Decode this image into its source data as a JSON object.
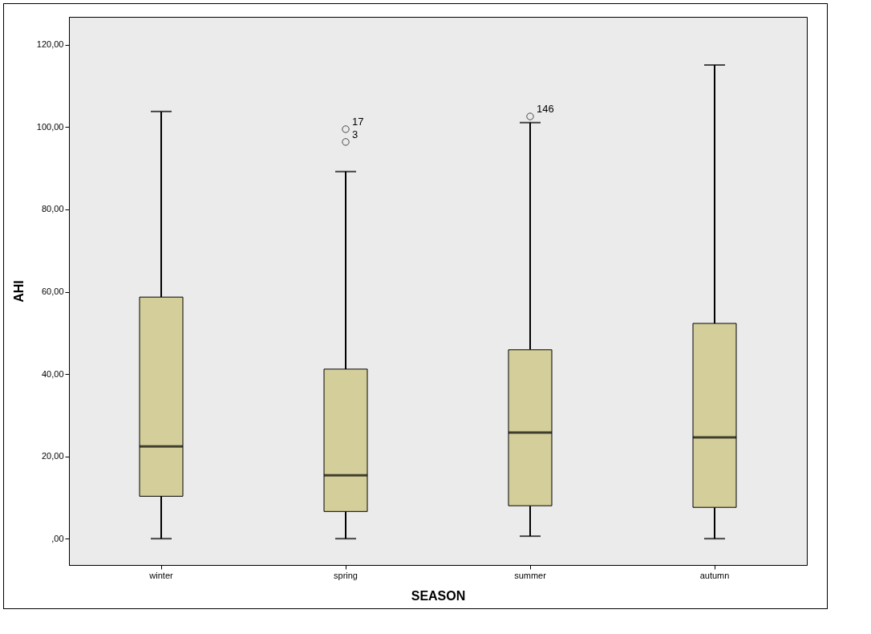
{
  "chart_data": {
    "type": "box",
    "xlabel": "SEASON",
    "ylabel": "AHI",
    "categories": [
      "winter",
      "spring",
      "summer",
      "autumn"
    ],
    "boxes": [
      {
        "low": 0,
        "q1": 10.3,
        "median": 22.4,
        "q3": 58.7,
        "high": 103.8
      },
      {
        "low": 0,
        "q1": 6.6,
        "median": 15.4,
        "q3": 41.2,
        "high": 89.2,
        "outliers": [
          99.5,
          96.4
        ]
      },
      {
        "low": 0.6,
        "q1": 8.0,
        "median": 25.8,
        "q3": 45.9,
        "high": 101.1,
        "outliers": [
          102.6
        ]
      },
      {
        "low": 0,
        "q1": 7.6,
        "median": 24.6,
        "q3": 52.3,
        "high": 115.1
      }
    ],
    "colors": [
      "#d4cf9a",
      "#d4cf9a",
      "#d4cf9a",
      "#d4cf9a"
    ],
    "ylim": [
      -6.4,
      126.8
    ],
    "yticks": [
      {
        "value": 0,
        "label": ",00"
      },
      {
        "value": 20,
        "label": "20,00"
      },
      {
        "value": 40,
        "label": "40,00"
      },
      {
        "value": 60,
        "label": "60,00"
      },
      {
        "value": 80,
        "label": "80,00"
      },
      {
        "value": 100,
        "label": "100,00"
      },
      {
        "value": 120,
        "label": "120,00"
      }
    ],
    "annotations": [
      "17",
      "3",
      "146"
    ],
    "grid": false,
    "marker": "circle"
  }
}
